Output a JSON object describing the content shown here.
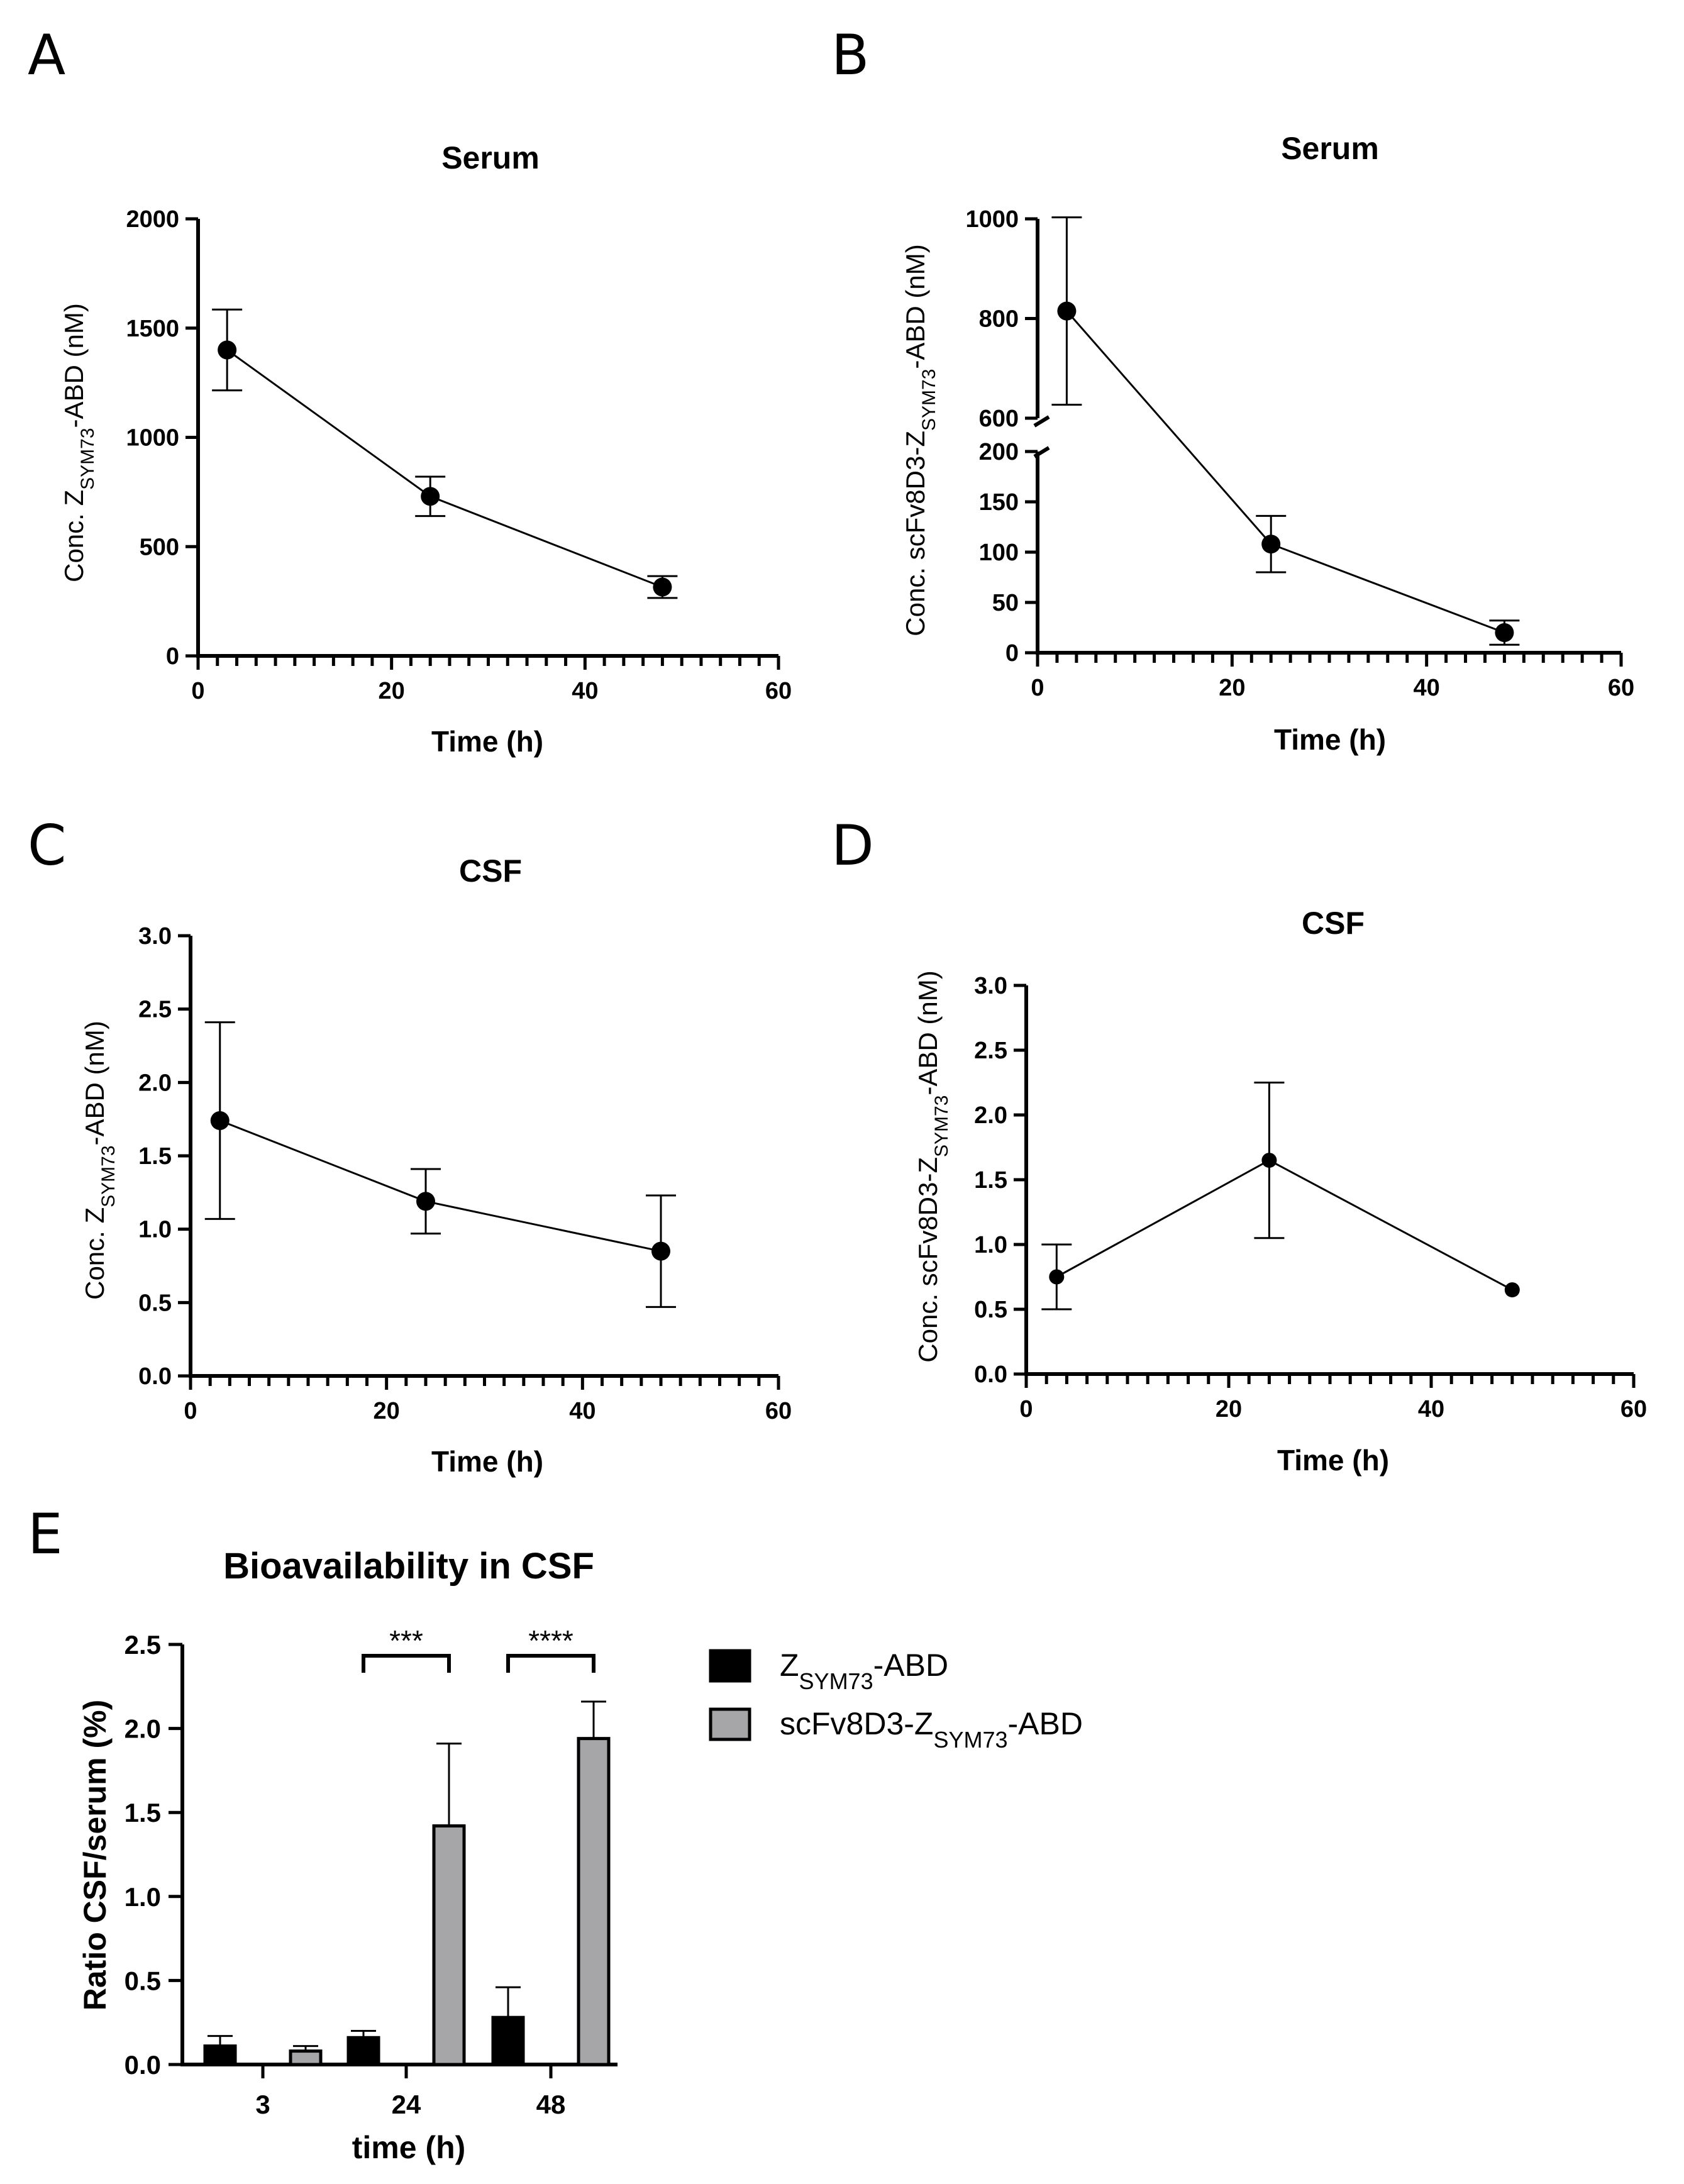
{
  "chart_data": [
    {
      "id": "A",
      "panel_label": "A",
      "type": "line",
      "title": "Serum",
      "xlabel": "Time (h)",
      "ylabel": {
        "pre": "Conc. Z",
        "sub": "SYM73",
        "post": "-ABD (nM)"
      },
      "xlim": [
        0,
        60
      ],
      "ylim": [
        0,
        2000
      ],
      "xticks": [
        0,
        20,
        40,
        60
      ],
      "yticks": [
        0,
        500,
        1000,
        1500,
        2000
      ],
      "points": [
        {
          "x": 3,
          "y": 1400,
          "err": 185
        },
        {
          "x": 24,
          "y": 730,
          "err": 90
        },
        {
          "x": 48,
          "y": 315,
          "err": 50
        }
      ]
    },
    {
      "id": "B",
      "panel_label": "B",
      "type": "line",
      "title": "Serum",
      "xlabel": "Time (h)",
      "ylabel": {
        "pre": "Conc. scFv8D3-Z",
        "sub": "SYM73",
        "post": "-ABD (nM)"
      },
      "xlim": [
        0,
        60
      ],
      "ylim": [
        0,
        1000
      ],
      "y_break": [
        200,
        600
      ],
      "xticks": [
        0,
        20,
        40,
        60
      ],
      "yticks": [
        0,
        50,
        100,
        150,
        200,
        600,
        800,
        1000
      ],
      "points": [
        {
          "x": 3,
          "y": 815,
          "err": 188
        },
        {
          "x": 24,
          "y": 108,
          "err": 28
        },
        {
          "x": 48,
          "y": 20,
          "err": 12
        }
      ]
    },
    {
      "id": "C",
      "panel_label": "C",
      "type": "line",
      "title": "CSF",
      "xlabel": "Time (h)",
      "ylabel": {
        "pre": "Conc. Z",
        "sub": "SYM73",
        "post": "-ABD (nM)"
      },
      "xlim": [
        0,
        60
      ],
      "ylim": [
        0,
        3.0
      ],
      "xticks": [
        0,
        20,
        40,
        60
      ],
      "yticks": [
        "0.0",
        "0.5",
        "1.0",
        "1.5",
        "2.0",
        "2.5",
        "3.0"
      ],
      "points": [
        {
          "x": 3,
          "y": 1.74,
          "err": 0.67
        },
        {
          "x": 24,
          "y": 1.19,
          "err": 0.22
        },
        {
          "x": 48,
          "y": 0.85,
          "err": 0.38
        }
      ]
    },
    {
      "id": "D",
      "panel_label": "D",
      "type": "line",
      "title": "CSF",
      "xlabel": "Time (h)",
      "ylabel": {
        "pre": "Conc. scFv8D3-Z",
        "sub": "SYM73",
        "post": "-ABD (nM)"
      },
      "xlim": [
        0,
        60
      ],
      "ylim": [
        0,
        3.0
      ],
      "xticks": [
        0,
        20,
        40,
        60
      ],
      "yticks": [
        "0.0",
        "0.5",
        "1.0",
        "1.5",
        "2.0",
        "2.5",
        "3.0"
      ],
      "points": [
        {
          "x": 3,
          "y": 0.75,
          "err": 0.25
        },
        {
          "x": 24,
          "y": 1.65,
          "err": 0.6
        },
        {
          "x": 48,
          "y": 0.65,
          "err": 0
        }
      ]
    },
    {
      "id": "E",
      "panel_label": "E",
      "type": "bar",
      "title": "Bioavailability in CSF",
      "xlabel": "time (h)",
      "ylabel": "Ratio CSF/serum (%)",
      "categories": [
        "3",
        "24",
        "48"
      ],
      "ylim": [
        0,
        2.5
      ],
      "yticks": [
        "0.0",
        "0.5",
        "1.0",
        "1.5",
        "2.0",
        "2.5"
      ],
      "series": [
        {
          "name": {
            "pre": "Z",
            "sub": "SYM73",
            "post": "-ABD"
          },
          "color": "#000000",
          "values": [
            0.11,
            0.16,
            0.28
          ],
          "errors": [
            0.06,
            0.04,
            0.18
          ]
        },
        {
          "name": {
            "pre": "scFv8D3-Z",
            "sub": "SYM73",
            "post": "-ABD"
          },
          "color": "#a6a6a8",
          "values": [
            0.08,
            1.42,
            1.94
          ],
          "errors": [
            0.03,
            0.49,
            0.22
          ]
        }
      ],
      "significance": [
        {
          "category": "24",
          "label": "***"
        },
        {
          "category": "48",
          "label": "****"
        }
      ]
    }
  ]
}
